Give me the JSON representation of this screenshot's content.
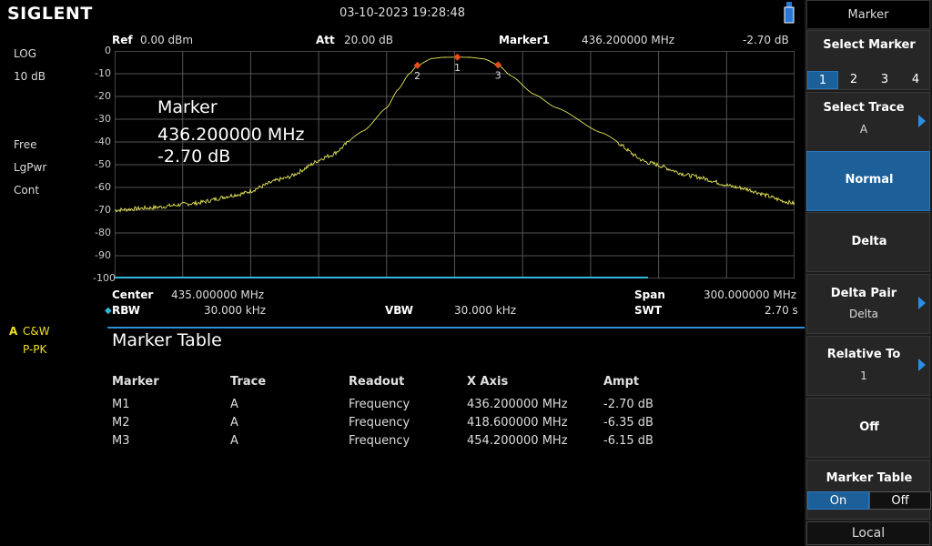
{
  "brand": "SIGLENT",
  "datetime": "03-10-2023   19:28:48",
  "header": {
    "ref_label": "Ref",
    "ref_value": "0.00 dBm",
    "att_label": "Att",
    "att_value": "20.00 dB",
    "marker_label": "Marker1",
    "marker_freq": "436.200000 MHz",
    "marker_ampl": "-2.70 dB"
  },
  "left_panel": {
    "scale_type": "LOG",
    "scale_div": "10 dB",
    "trig": "Free",
    "detector": "LgPwr",
    "sweep": "Cont",
    "trace_letter": "A",
    "trace_mode": "C&W",
    "trace_det": "P-PK"
  },
  "y_ticks": [
    "0",
    "-10",
    "-20",
    "-30",
    "-40",
    "-50",
    "-60",
    "-70",
    "-80",
    "-90",
    "-100"
  ],
  "marker_overlay": {
    "title": "Marker",
    "freq": "436.200000 MHz",
    "ampl": "-2.70 dB"
  },
  "markers": [
    {
      "label": "1",
      "x": 436.2,
      "y": -2.7
    },
    {
      "label": "2",
      "x": 418.6,
      "y": -6.35
    },
    {
      "label": "3",
      "x": 454.2,
      "y": -6.15
    }
  ],
  "footer": {
    "center_label": "Center",
    "center_value": "435.000000 MHz",
    "span_label": "Span",
    "span_value": "300.000000 MHz",
    "rbw_label": "RBW",
    "rbw_value": "30.000 kHz",
    "vbw_label": "VBW",
    "vbw_value": "30.000 kHz",
    "swt_label": "SWT",
    "swt_value": "2.70 s"
  },
  "marker_table": {
    "title": "Marker Table",
    "headers": [
      "Marker",
      "Trace",
      "Readout",
      "X Axis",
      "Ampt"
    ],
    "rows": [
      [
        "M1",
        "A",
        "Frequency",
        "436.200000 MHz",
        "-2.70 dB"
      ],
      [
        "M2",
        "A",
        "Frequency",
        "418.600000 MHz",
        "-6.35 dB"
      ],
      [
        "M3",
        "A",
        "Frequency",
        "454.200000 MHz",
        "-6.15 dB"
      ]
    ]
  },
  "menu": {
    "title": "Marker",
    "select_marker": {
      "label": "Select Marker",
      "options": [
        "1",
        "2",
        "3",
        "4"
      ],
      "selected": "1"
    },
    "select_trace": {
      "label": "Select Trace",
      "value": "A"
    },
    "normal": "Normal",
    "delta": "Delta",
    "delta_pair": {
      "label": "Delta Pair",
      "value": "Delta"
    },
    "relative_to": {
      "label": "Relative To",
      "value": "1"
    },
    "off": "Off",
    "marker_table": {
      "label": "Marker Table",
      "on": "On",
      "off": "Off",
      "selected": "On"
    },
    "local": "Local"
  },
  "chart_data": {
    "type": "line",
    "x_unit": "MHz",
    "xlim": [
      285,
      585
    ],
    "ylim": [
      -100,
      0
    ],
    "x": [
      285,
      300,
      320,
      340,
      360,
      380,
      395,
      405,
      410,
      415,
      418.6,
      425,
      430,
      436.2,
      442,
      448,
      454.2,
      460,
      470,
      480,
      500,
      520,
      540,
      560,
      585
    ],
    "y": [
      -70,
      -69,
      -67,
      -63,
      -56,
      -46,
      -35,
      -25,
      -17,
      -10,
      -6.35,
      -3.3,
      -2.8,
      -2.7,
      -2.8,
      -3.5,
      -6.15,
      -11,
      -19,
      -25,
      -36,
      -49,
      -55,
      -60,
      -67
    ],
    "colors": {
      "trace": "#e8e85a",
      "grid": "#555555",
      "marker": "#e0501a"
    }
  },
  "colors": {
    "accent": "#1c5f99",
    "table_line": "#2f8fd6",
    "trace_A": "#f0e020"
  }
}
